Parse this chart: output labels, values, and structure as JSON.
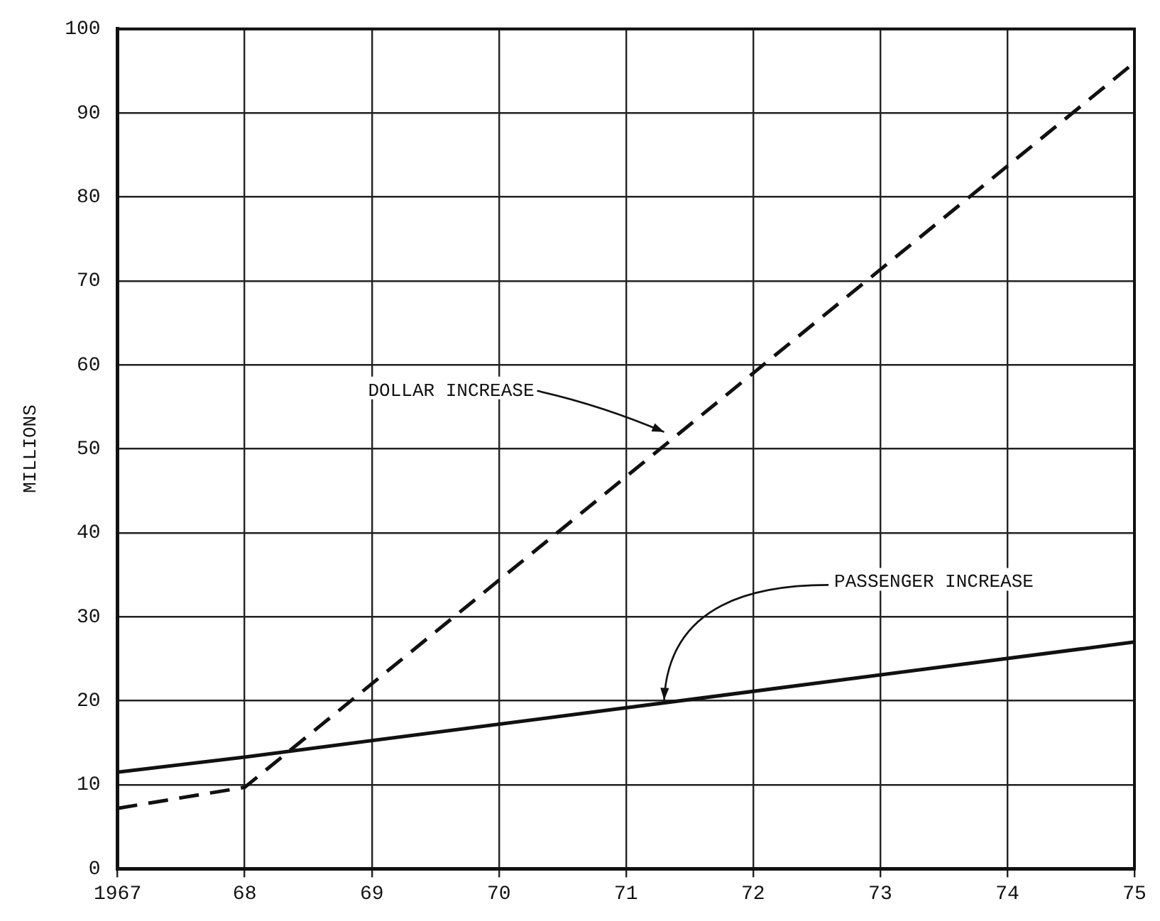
{
  "chart_data": {
    "type": "line",
    "ylabel": "MILLIONS",
    "xlim": [
      1967,
      1975
    ],
    "xticks": [
      1967,
      {
        "value": 1968,
        "label": "68"
      },
      {
        "value": 1969,
        "label": "69"
      },
      {
        "value": 1970,
        "label": "70"
      },
      {
        "value": 1971,
        "label": "71"
      },
      {
        "value": 1972,
        "label": "72"
      },
      {
        "value": 1973,
        "label": "73"
      },
      {
        "value": 1974,
        "label": "74"
      },
      {
        "value": 1975,
        "label": "75"
      }
    ],
    "ylim": [
      0,
      100
    ],
    "yticks": [
      0,
      10,
      20,
      30,
      40,
      50,
      60,
      70,
      80,
      90,
      100
    ],
    "series": [
      {
        "color": "#111111",
        "line_style": "dashed",
        "x": [
          1967,
          1968,
          1975
        ],
        "values": [
          7.2,
          9.7,
          96
        ]
      },
      {
        "color": "#111111",
        "line_style": "solid",
        "x": [
          1967,
          1968,
          1975
        ],
        "values": [
          11.5,
          13.3,
          27
        ]
      }
    ],
    "annotations": [
      {
        "text": "DOLLAR INCREASE",
        "x": 1971.3,
        "y": 51.5
      },
      {
        "text": "PASSENGER INCREASE",
        "x": 1971.3,
        "y": 19.6
      }
    ],
    "grid": true,
    "legend": false,
    "marker": "none"
  }
}
